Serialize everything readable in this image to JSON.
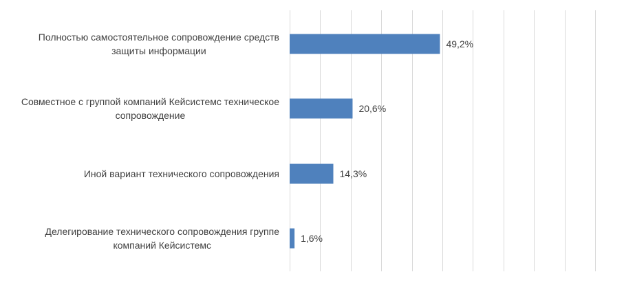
{
  "chart_data": {
    "type": "bar",
    "orientation": "horizontal",
    "categories": [
      [
        "Полностью самостоятельное сопровождение средств",
        "защиты информации"
      ],
      [
        "Совместное с группой компаний Кейсистемс техническое",
        "сопровождение"
      ],
      [
        "Иной вариант технического сопровождения"
      ],
      [
        "Делегирование технического сопровождения группе",
        "компаний Кейсистемс"
      ]
    ],
    "values": [
      49.2,
      20.6,
      14.3,
      1.6
    ],
    "data_labels": [
      "49,2%",
      "20,6%",
      "14,3%",
      "1,6%"
    ],
    "xlim": [
      0,
      100
    ],
    "grid": true,
    "legend": "none",
    "bar_color": "#4f81bd",
    "grid_color": "#d9d9d9",
    "text_color": "#404040"
  }
}
